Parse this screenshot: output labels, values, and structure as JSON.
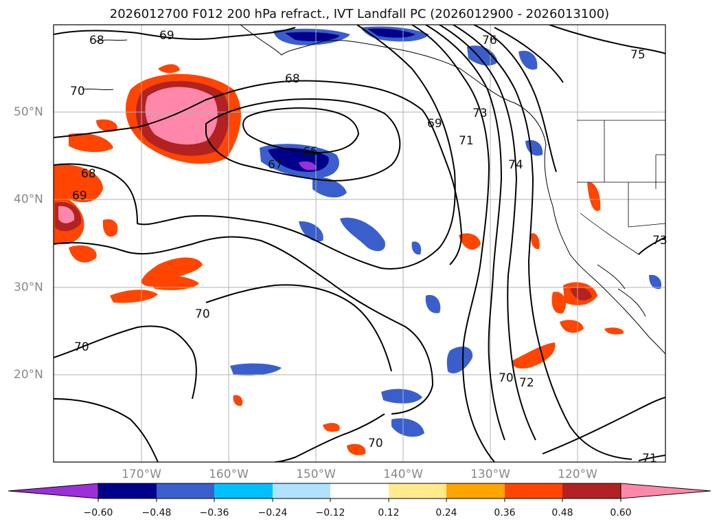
{
  "title": "2026012700 F012 200 hPa refract., IVT Landfall PC (2026012900 - 2026013100)",
  "map": {
    "lat_labels": [
      "50°N",
      "40°N",
      "30°N",
      "20°N"
    ],
    "lon_labels": [
      "170°W",
      "160°W",
      "150°W",
      "140°W",
      "130°W",
      "120°W"
    ],
    "contour_labels": [
      "68",
      "69",
      "70",
      "68",
      "66",
      "67",
      "68",
      "69",
      "71",
      "73",
      "74",
      "76",
      "75",
      "73",
      "70",
      "70",
      "72",
      "70",
      "71",
      "69",
      "70"
    ]
  },
  "colorbar": {
    "ticks": [
      "−0.60",
      "−0.48",
      "−0.36",
      "−0.24",
      "−0.12",
      "0.12",
      "0.24",
      "0.36",
      "0.48",
      "0.60"
    ],
    "colors": [
      "#9b30d9",
      "#00008b",
      "#3a5fcd",
      "#00bfff",
      "#b0e2ff",
      "#ffffff",
      "#ffeb8c",
      "#ffa500",
      "#ff4500",
      "#b22222",
      "#ff88aa"
    ]
  }
}
